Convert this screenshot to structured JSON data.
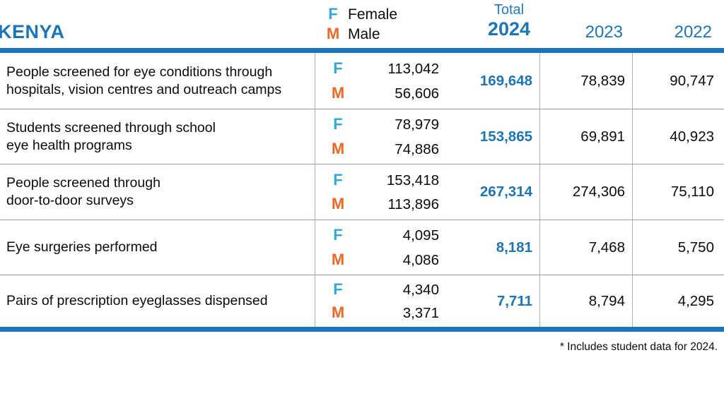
{
  "header": {
    "country": "KENYA"
  },
  "legend": {
    "female_abbr": "F",
    "female_label": "Female",
    "male_abbr": "M",
    "male_label": "Male"
  },
  "columns": {
    "total_label": "Total",
    "total_year": "2024",
    "year_2023": "2023",
    "year_2022": "2022"
  },
  "rows": [
    {
      "label": "People screened for eye conditions through\nhospitals, vision centres and outreach camps",
      "female": "113,042",
      "male": "56,606",
      "total": "169,648",
      "y2023": "78,839",
      "y2022": "90,747"
    },
    {
      "label": "Students screened through school\neye health programs",
      "female": "78,979",
      "male": "74,886",
      "total": "153,865",
      "y2023": "69,891",
      "y2022": "40,923"
    },
    {
      "label": "People screened through\ndoor-to-door surveys",
      "female": "153,418",
      "male": "113,896",
      "total": "267,314",
      "y2023": "274,306",
      "y2022": "75,110"
    },
    {
      "label": "Eye surgeries performed",
      "female": "4,095",
      "male": "4,086",
      "total": "8,181",
      "y2023": "7,468",
      "y2022": "5,750"
    },
    {
      "label": "Pairs of prescription eyeglasses dispensed",
      "female": "4,340",
      "male": "3,371",
      "total": "7,711",
      "y2023": "8,794",
      "y2022": "4,295"
    }
  ],
  "footnote": "* Includes student data for 2024.",
  "colors": {
    "dark_blue": "#1B75BB",
    "light_blue_female": "#2FA8E1",
    "orange_male": "#F26722",
    "grid_gray": "#9c9c9c"
  },
  "chart_data": {
    "type": "table",
    "title": "KENYA",
    "categories": [
      "People screened for eye conditions through hospitals, vision centres and outreach camps",
      "Students screened through school eye health programs",
      "People screened through door-to-door surveys",
      "Eye surgeries performed",
      "Pairs of prescription eyeglasses dispensed"
    ],
    "series": [
      {
        "name": "Female 2024",
        "values": [
          113042,
          78979,
          153418,
          4095,
          4340
        ]
      },
      {
        "name": "Male 2024",
        "values": [
          56606,
          74886,
          113896,
          4086,
          3371
        ]
      },
      {
        "name": "Total 2024",
        "values": [
          169648,
          153865,
          267314,
          8181,
          7711
        ]
      },
      {
        "name": "2023",
        "values": [
          78839,
          69891,
          274306,
          7468,
          8794
        ]
      },
      {
        "name": "2022",
        "values": [
          90747,
          40923,
          75110,
          5750,
          4295
        ]
      }
    ],
    "annotations": [
      "* Includes student data for 2024."
    ],
    "legend_entries": [
      "F Female",
      "M Male"
    ]
  }
}
